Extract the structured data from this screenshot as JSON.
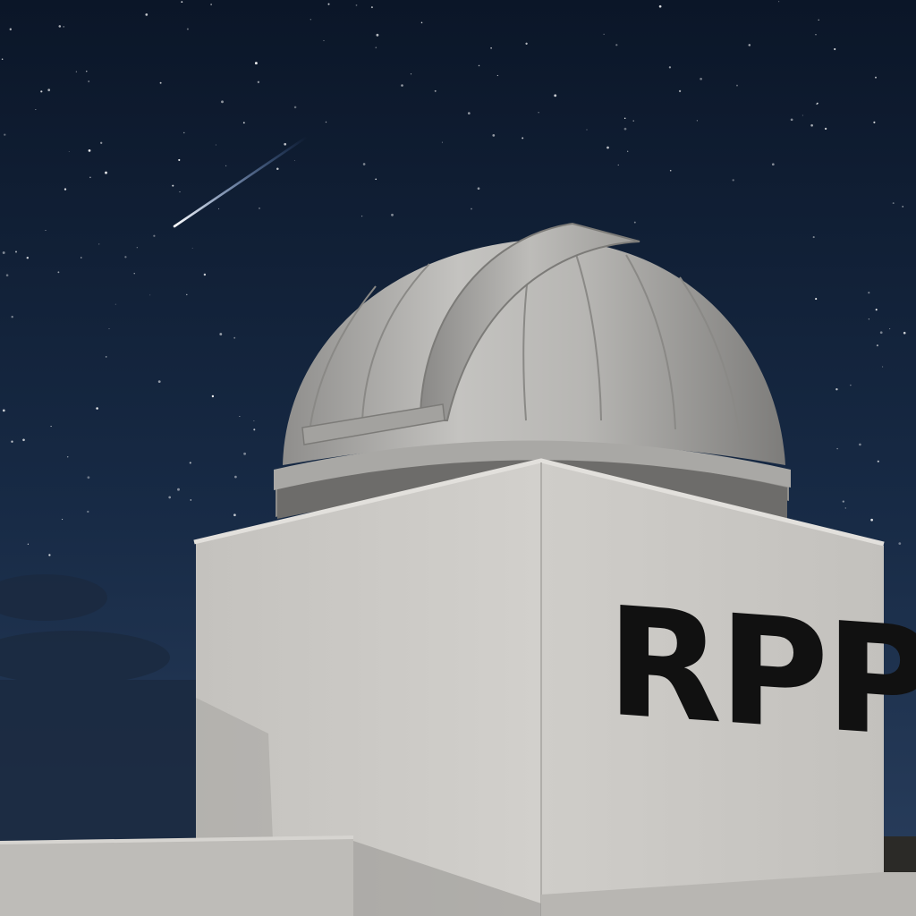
{
  "scene": {
    "building_sign": "RPP",
    "sky_color_top": "#0b1628",
    "sky_color_bottom": "#253a5a",
    "wall_color": "#c9c7c3",
    "dome_color": "#b9b8b5",
    "sign_color": "#111111"
  }
}
